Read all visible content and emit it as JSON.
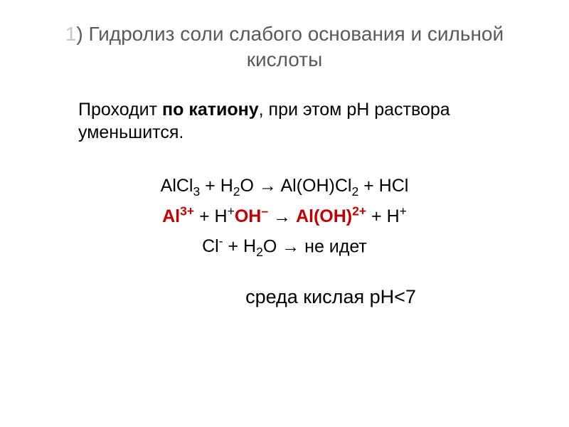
{
  "title": {
    "number": "1",
    "text": ") Гидролиз соли слабого основания и сильной кислоты",
    "color_num": "#c6c6c6",
    "color_text": "#595959",
    "fontsize": 28
  },
  "subtitle": {
    "prefix": "Проходит ",
    "bold_part": "по катиону",
    "suffix": ", при этом рН раствора уменьшится.",
    "fontsize": 25,
    "color": "#000000"
  },
  "equations": {
    "fontsize": 25,
    "color_default": "#000000",
    "color_highlight": "#c00000",
    "line1": {
      "parts": [
        {
          "text": "AlCl",
          "sub": "3"
        },
        {
          "text": " + H",
          "sub": "2"
        },
        {
          "text": "O → Al(OH)Cl",
          "sub": "2"
        },
        {
          "text": " + HCl"
        }
      ]
    },
    "line2": {
      "al_ion": "Al",
      "al_charge": "3+",
      "plus1": " + H",
      "plus1_sup": "+",
      "oh": "OH",
      "oh_sup": "–",
      "arrow": " → ",
      "aloh": "Al(OH)",
      "aloh_sup": "2+",
      "plus_h": " + H",
      "plus_h_sup": "+"
    },
    "line3": {
      "cl": "Cl",
      "cl_sup": "-",
      "plus_h2o": " + H",
      "h2o_sub": "2",
      "rest": "O → не идет"
    }
  },
  "conclusion": {
    "text_prefix": "среда кислая ",
    "ph_text": "рН",
    "lt": "<",
    "seven": "7",
    "fontsize": 27,
    "color": "#000000"
  }
}
